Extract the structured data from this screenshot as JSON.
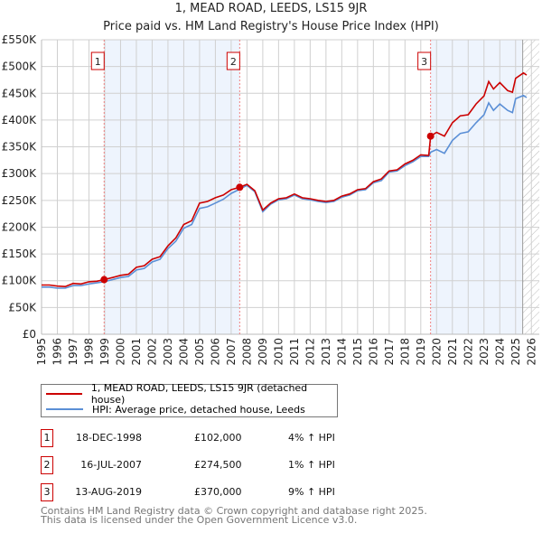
{
  "chart_data": {
    "type": "line",
    "title": "1, MEAD ROAD, LEEDS, LS15 9JR",
    "subtitle": "Price paid vs. HM Land Registry's House Price Index (HPI)",
    "xlim": [
      1995,
      2026.5
    ],
    "ylim": [
      0,
      550000
    ],
    "grid": true,
    "y_ticks": [
      0,
      50000,
      100000,
      150000,
      200000,
      250000,
      300000,
      350000,
      400000,
      450000,
      500000,
      550000
    ],
    "y_tick_labels": [
      "£0",
      "£50K",
      "£100K",
      "£150K",
      "£200K",
      "£250K",
      "£300K",
      "£350K",
      "£400K",
      "£450K",
      "£500K",
      "£550K"
    ],
    "x_ticks": [
      1995,
      1996,
      1997,
      1998,
      1999,
      2000,
      2001,
      2002,
      2003,
      2004,
      2005,
      2006,
      2007,
      2008,
      2009,
      2010,
      2011,
      2012,
      2013,
      2014,
      2015,
      2016,
      2017,
      2018,
      2019,
      2020,
      2021,
      2022,
      2023,
      2024,
      2025,
      2026
    ],
    "x_tick_labels": [
      "1995",
      "1996",
      "1997",
      "1998",
      "1999",
      "2000",
      "2001",
      "2002",
      "2003",
      "2004",
      "2005",
      "2006",
      "2007",
      "2008",
      "2009",
      "2010",
      "2011",
      "2012",
      "2013",
      "2014",
      "2015",
      "2016",
      "2017",
      "2018",
      "2019",
      "2020",
      "2021",
      "2022",
      "2023",
      "2024",
      "2025",
      "2026"
    ],
    "shaded_ranges": [
      [
        1998.96,
        2007.54
      ],
      [
        2019.62,
        2025.4
      ]
    ],
    "forecast_from": 2025.45,
    "series": [
      {
        "name": "1, MEAD ROAD, LEEDS, LS15 9JR (detached house)",
        "color": "#cc0000",
        "x": [
          1995,
          1995.5,
          1996,
          1996.5,
          1997,
          1997.5,
          1998,
          1998.5,
          1998.96,
          1999.5,
          2000,
          2000.5,
          2001,
          2001.5,
          2002,
          2002.5,
          2003,
          2003.5,
          2004,
          2004.5,
          2005,
          2005.5,
          2006,
          2006.5,
          2007,
          2007.54,
          2008,
          2008.5,
          2009,
          2009.5,
          2010,
          2010.5,
          2011,
          2011.5,
          2012,
          2012.5,
          2013,
          2013.5,
          2014,
          2014.5,
          2015,
          2015.5,
          2016,
          2016.5,
          2017,
          2017.5,
          2018,
          2018.5,
          2019,
          2019.5,
          2019.62,
          2020,
          2020.5,
          2021,
          2021.5,
          2022,
          2022.5,
          2023,
          2023.3,
          2023.6,
          2024,
          2024.5,
          2024.8,
          2025,
          2025.5,
          2025.7
        ],
        "y": [
          92000,
          92000,
          90000,
          89000,
          95000,
          94000,
          98000,
          99000,
          102000,
          106000,
          110000,
          112000,
          125000,
          128000,
          140000,
          145000,
          165000,
          180000,
          205000,
          212000,
          245000,
          248000,
          255000,
          260000,
          270000,
          274500,
          280000,
          268000,
          232000,
          245000,
          253000,
          255000,
          262000,
          255000,
          253000,
          250000,
          248000,
          250000,
          258000,
          262000,
          270000,
          272000,
          285000,
          290000,
          305000,
          307000,
          318000,
          325000,
          335000,
          334000,
          370000,
          377000,
          370000,
          395000,
          408000,
          410000,
          430000,
          445000,
          472000,
          458000,
          470000,
          455000,
          452000,
          478000,
          488000,
          484000
        ]
      },
      {
        "name": "HPI: Average price, detached house, Leeds",
        "color": "#5b8fd6",
        "x": [
          1995,
          1995.5,
          1996,
          1996.5,
          1997,
          1997.5,
          1998,
          1998.5,
          1998.96,
          1999.5,
          2000,
          2000.5,
          2001,
          2001.5,
          2002,
          2002.5,
          2003,
          2003.5,
          2004,
          2004.5,
          2005,
          2005.5,
          2006,
          2006.5,
          2007,
          2007.54,
          2008,
          2008.5,
          2009,
          2009.5,
          2010,
          2010.5,
          2011,
          2011.5,
          2012,
          2012.5,
          2013,
          2013.5,
          2014,
          2014.5,
          2015,
          2015.5,
          2016,
          2016.5,
          2017,
          2017.5,
          2018,
          2018.5,
          2019,
          2019.5,
          2019.62,
          2020,
          2020.5,
          2021,
          2021.5,
          2022,
          2022.5,
          2023,
          2023.3,
          2023.6,
          2024,
          2024.5,
          2024.8,
          2025,
          2025.5,
          2025.7
        ],
        "y": [
          88000,
          88000,
          86000,
          86000,
          91000,
          91000,
          94000,
          96000,
          98000,
          102000,
          106000,
          108000,
          120000,
          123000,
          135000,
          140000,
          160000,
          174000,
          198000,
          205000,
          235000,
          238000,
          245000,
          252000,
          263000,
          271000,
          278000,
          266000,
          229000,
          243000,
          251000,
          253000,
          260000,
          253000,
          251000,
          248000,
          246000,
          248000,
          256000,
          260000,
          268000,
          270000,
          283000,
          287000,
          303000,
          305000,
          315000,
          322000,
          332000,
          332000,
          340000,
          345000,
          338000,
          362000,
          375000,
          378000,
          395000,
          410000,
          432000,
          418000,
          430000,
          418000,
          414000,
          440000,
          446000,
          442000
        ]
      }
    ],
    "sales": [
      {
        "label": "1",
        "x": 1998.96,
        "y": 102000
      },
      {
        "label": "2",
        "x": 2007.54,
        "y": 274500
      },
      {
        "label": "3",
        "x": 2019.62,
        "y": 370000
      }
    ]
  },
  "legend": {
    "property": "1, MEAD ROAD, LEEDS, LS15 9JR (detached house)",
    "hpi": "HPI: Average price, detached house, Leeds"
  },
  "transactions": [
    {
      "num": "1",
      "date": "18-DEC-1998",
      "price": "£102,000",
      "hpi": "4% ↑ HPI"
    },
    {
      "num": "2",
      "date": "16-JUL-2007",
      "price": "£274,500",
      "hpi": "1% ↑ HPI"
    },
    {
      "num": "3",
      "date": "13-AUG-2019",
      "price": "£370,000",
      "hpi": "9% ↑ HPI"
    }
  ],
  "footer": {
    "line1": "Contains HM Land Registry data © Crown copyright and database right 2025.",
    "line2": "This data is licensed under the Open Government Licence v3.0."
  }
}
